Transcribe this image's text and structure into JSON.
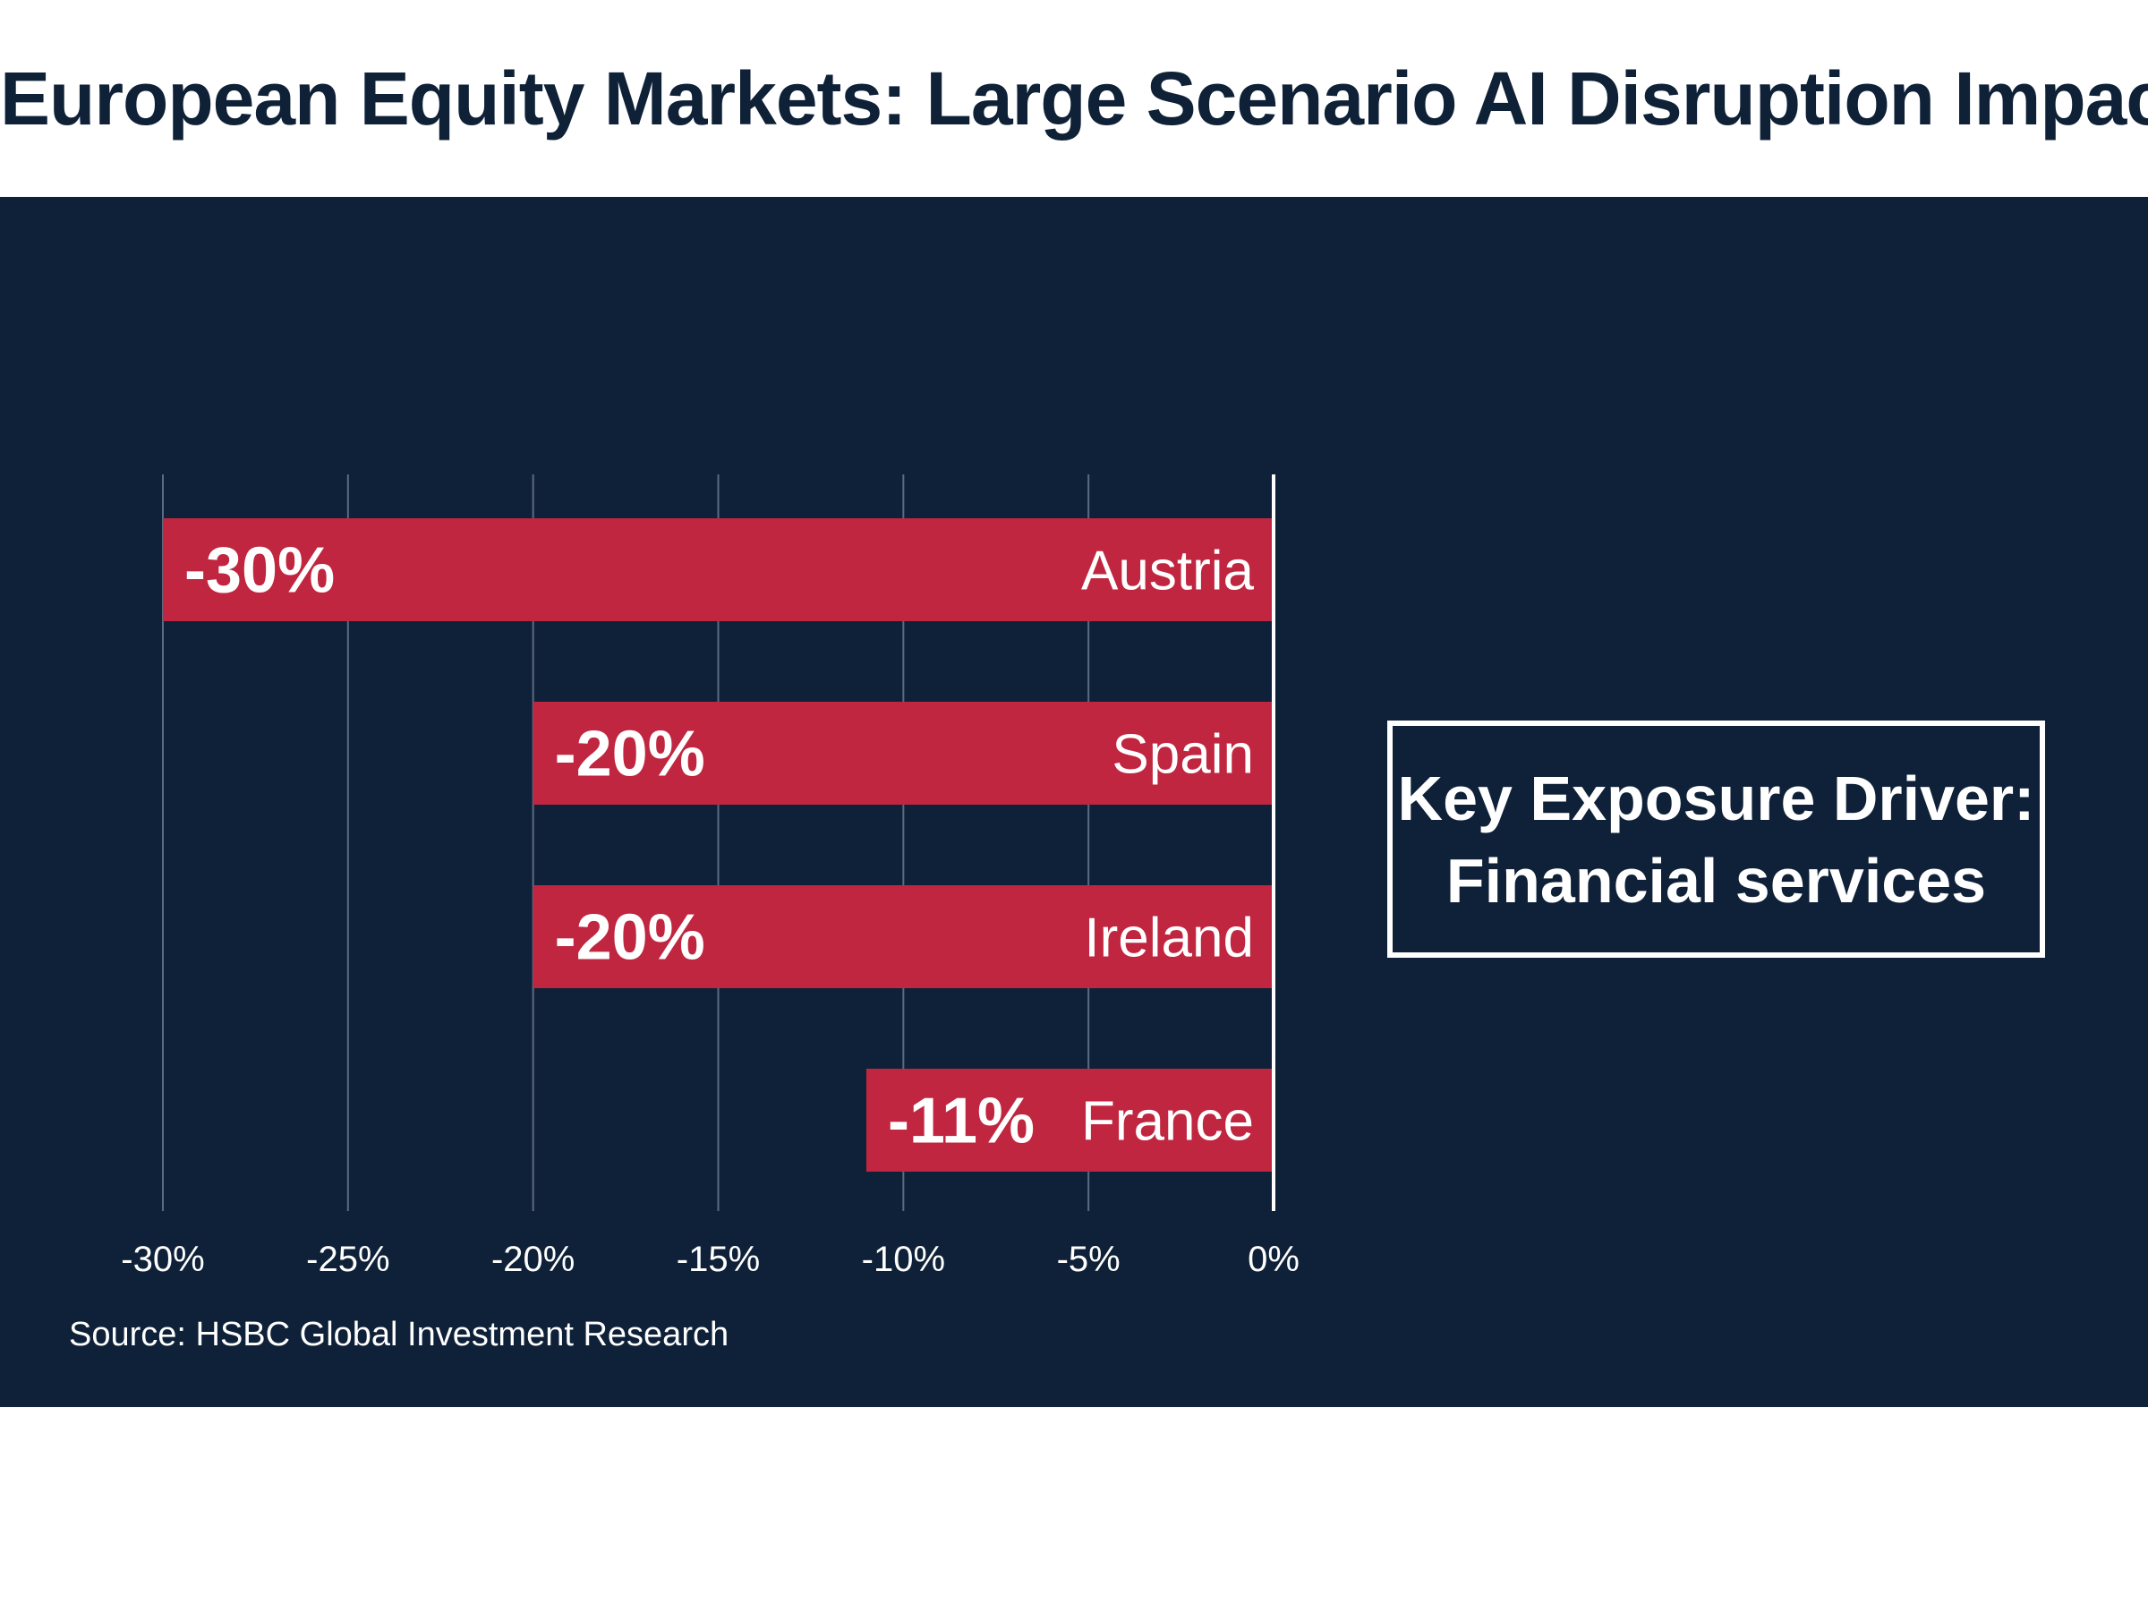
{
  "title": "European Equity Markets: Large Scenario AI Disruption Impact",
  "callout": {
    "line1": "Key Exposure Driver:",
    "line2": "Financial services"
  },
  "source": "Source: HSBC Global Investment Research",
  "colors": {
    "background": "#ffffff",
    "panel": "#0f2138",
    "bar": "#c0263f",
    "text_dark": "#0f2137",
    "text_light": "#ffffff",
    "gridline": "#5a6a80"
  },
  "chart_data": {
    "type": "bar",
    "orientation": "horizontal",
    "categories": [
      "Austria",
      "Spain",
      "Ireland",
      "France"
    ],
    "values": [
      -30,
      -20,
      -20,
      -11
    ],
    "value_labels": [
      "-30%",
      "-20%",
      "-20%",
      "-11%"
    ],
    "title": "European Equity Markets: Large Scenario AI Disruption Impact",
    "xlabel": "",
    "ylabel": "",
    "xlim": [
      -30,
      0
    ],
    "ticks": [
      -30,
      -25,
      -20,
      -15,
      -10,
      -5,
      0
    ],
    "tick_labels": [
      "-30%",
      "-25%",
      "-20%",
      "-15%",
      "-10%",
      "-5%",
      "0%"
    ],
    "grid": true,
    "legend": "none"
  }
}
